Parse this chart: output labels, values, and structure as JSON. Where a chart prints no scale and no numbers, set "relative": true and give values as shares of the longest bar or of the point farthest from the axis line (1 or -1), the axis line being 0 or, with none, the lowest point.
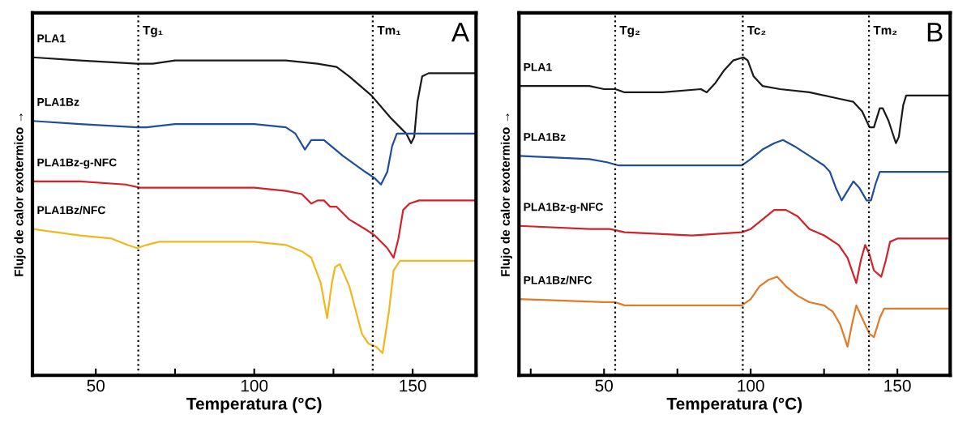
{
  "chart_data": [
    {
      "type": "line",
      "relative": true,
      "xlabel": "Temperatura (°C)",
      "ylabel": "Flujo de calor exotermico →",
      "xlim": [
        30,
        170
      ],
      "xticks": [
        50,
        {
          "value": 75,
          "label": null
        },
        100,
        {
          "value": 125,
          "label": null
        },
        150
      ],
      "tick_labels": "x",
      "grid": false,
      "legend": false,
      "line_style": "solid",
      "marker": "none",
      "annotations": [
        "A"
      ],
      "ref_lines": [
        {
          "axis": "x",
          "value": 63.4,
          "label": "Tg₁",
          "color": "#000000",
          "line_style": "dotted"
        },
        {
          "axis": "x",
          "value": 137.4,
          "label": "Tm₁",
          "color": "#000000",
          "line_style": "dotted"
        }
      ],
      "series": [
        {
          "name": "PLA1",
          "color": "#1a1a1a",
          "x": [
            30,
            45,
            63,
            68,
            75,
            100,
            110,
            120,
            126,
            130,
            137,
            143,
            146,
            148,
            149.5,
            150.5,
            151.5,
            153,
            155,
            170
          ],
          "values": [
            1.0,
            0.99,
            0.98,
            0.98,
            0.99,
            0.99,
            0.99,
            0.98,
            0.97,
            0.94,
            0.88,
            0.81,
            0.78,
            0.76,
            0.73,
            0.75,
            0.86,
            0.94,
            0.95,
            0.95
          ]
        },
        {
          "name": "PLA1Bz",
          "color": "#1f4e9c",
          "x": [
            30,
            45,
            63,
            66,
            75,
            100,
            110,
            113,
            116,
            118,
            120,
            122,
            128,
            135,
            138,
            140,
            142,
            143.5,
            145,
            148,
            170
          ],
          "values": [
            0.8,
            0.79,
            0.78,
            0.78,
            0.79,
            0.79,
            0.78,
            0.76,
            0.71,
            0.74,
            0.74,
            0.74,
            0.69,
            0.64,
            0.62,
            0.6,
            0.64,
            0.72,
            0.76,
            0.76,
            0.76
          ]
        },
        {
          "name": "PLA1Bz-g-NFC",
          "color": "#d0232a",
          "x": [
            30,
            45,
            59.4,
            64,
            75,
            100,
            110,
            115,
            118,
            120,
            122,
            124,
            126,
            130,
            135,
            138,
            142,
            144,
            145.5,
            147,
            149,
            152,
            170
          ],
          "values": [
            0.61,
            0.61,
            0.6,
            0.59,
            0.59,
            0.59,
            0.58,
            0.57,
            0.54,
            0.55,
            0.55,
            0.53,
            0.53,
            0.49,
            0.46,
            0.44,
            0.4,
            0.37,
            0.43,
            0.52,
            0.54,
            0.55,
            0.55
          ]
        },
        {
          "name": "PLA1Bz/NFC",
          "color": "#f0b81c",
          "x": [
            30,
            45,
            55,
            60,
            63,
            66,
            70,
            80,
            100,
            110,
            115,
            118,
            121,
            123,
            124.5,
            125.5,
            127,
            130,
            134,
            136,
            138.5,
            140.5,
            142.5,
            144,
            146,
            150,
            170
          ],
          "values": [
            0.46,
            0.44,
            0.43,
            0.41,
            0.4,
            0.41,
            0.42,
            0.42,
            0.42,
            0.41,
            0.39,
            0.37,
            0.29,
            0.18,
            0.29,
            0.34,
            0.35,
            0.28,
            0.13,
            0.1,
            0.09,
            0.07,
            0.2,
            0.33,
            0.36,
            0.36,
            0.36
          ]
        }
      ]
    },
    {
      "type": "line",
      "relative": true,
      "xlabel": "Temperatura (°C)",
      "ylabel": "Flujo de calor exotermico →",
      "xlim": [
        21,
        168
      ],
      "xticks": [
        {
          "value": 25,
          "label": null
        },
        50,
        {
          "value": 75,
          "label": null
        },
        100,
        {
          "value": 125,
          "label": null
        },
        150
      ],
      "tick_labels": "x",
      "grid": false,
      "legend": false,
      "line_style": "solid",
      "marker": "none",
      "annotations": [
        "B"
      ],
      "ref_lines": [
        {
          "axis": "x",
          "value": 53.8,
          "label": "Tg₂",
          "color": "#000000",
          "line_style": "dotted"
        },
        {
          "axis": "x",
          "value": 97.3,
          "label": "Tc₂",
          "color": "#000000",
          "line_style": "dotted"
        },
        {
          "axis": "x",
          "value": 140.3,
          "label": "Tm₂",
          "color": "#000000",
          "line_style": "dotted"
        }
      ],
      "series": [
        {
          "name": "PLA1",
          "color": "#1a1a1a",
          "x": [
            21,
            45,
            50,
            53.8,
            57,
            70,
            83,
            85,
            88,
            91,
            94,
            97.5,
            99,
            101,
            104,
            110,
            120,
            130,
            135,
            138,
            140.5,
            142,
            144,
            145,
            147,
            149.5,
            150.5,
            152,
            153,
            168
          ],
          "values": [
            0.91,
            0.91,
            0.9,
            0.9,
            0.89,
            0.89,
            0.9,
            0.89,
            0.92,
            0.96,
            0.99,
            1.0,
            0.99,
            0.94,
            0.91,
            0.9,
            0.89,
            0.87,
            0.86,
            0.83,
            0.78,
            0.78,
            0.84,
            0.84,
            0.8,
            0.73,
            0.75,
            0.85,
            0.88,
            0.88
          ]
        },
        {
          "name": "PLA1Bz",
          "color": "#1f4e9c",
          "x": [
            21,
            45,
            51,
            55,
            90,
            97,
            100,
            104,
            108,
            111,
            115,
            120,
            125,
            127,
            129,
            131,
            133,
            135,
            137,
            139.5,
            141,
            142.5,
            144,
            146,
            168
          ],
          "values": [
            0.69,
            0.68,
            0.67,
            0.66,
            0.66,
            0.66,
            0.68,
            0.71,
            0.73,
            0.74,
            0.72,
            0.69,
            0.66,
            0.64,
            0.59,
            0.55,
            0.58,
            0.61,
            0.59,
            0.55,
            0.55,
            0.6,
            0.64,
            0.64,
            0.64
          ]
        },
        {
          "name": "PLA1Bz-g-NFC",
          "color": "#d0232a",
          "x": [
            21,
            45,
            52,
            57,
            80,
            97,
            100,
            104,
            108,
            112,
            116,
            120,
            125,
            130,
            133,
            136,
            137.5,
            139,
            140.5,
            142,
            144.5,
            146,
            147.5,
            150,
            168
          ],
          "values": [
            0.47,
            0.46,
            0.46,
            0.45,
            0.44,
            0.45,
            0.46,
            0.49,
            0.52,
            0.52,
            0.5,
            0.46,
            0.44,
            0.41,
            0.37,
            0.29,
            0.36,
            0.41,
            0.38,
            0.33,
            0.31,
            0.36,
            0.42,
            0.43,
            0.43
          ]
        },
        {
          "name": "PLA1Bz/NFC",
          "color": "#e07b2a",
          "x": [
            21,
            50,
            53.8,
            57,
            90,
            97,
            100,
            103,
            106,
            109,
            112,
            116,
            120,
            125,
            128,
            130.5,
            133,
            134.5,
            136,
            137.5,
            140.5,
            142,
            144,
            145.5,
            150,
            168
          ],
          "values": [
            0.24,
            0.23,
            0.23,
            0.22,
            0.22,
            0.22,
            0.24,
            0.28,
            0.3,
            0.31,
            0.28,
            0.25,
            0.23,
            0.22,
            0.2,
            0.16,
            0.09,
            0.16,
            0.22,
            0.19,
            0.13,
            0.12,
            0.18,
            0.21,
            0.21,
            0.21
          ]
        }
      ]
    }
  ]
}
